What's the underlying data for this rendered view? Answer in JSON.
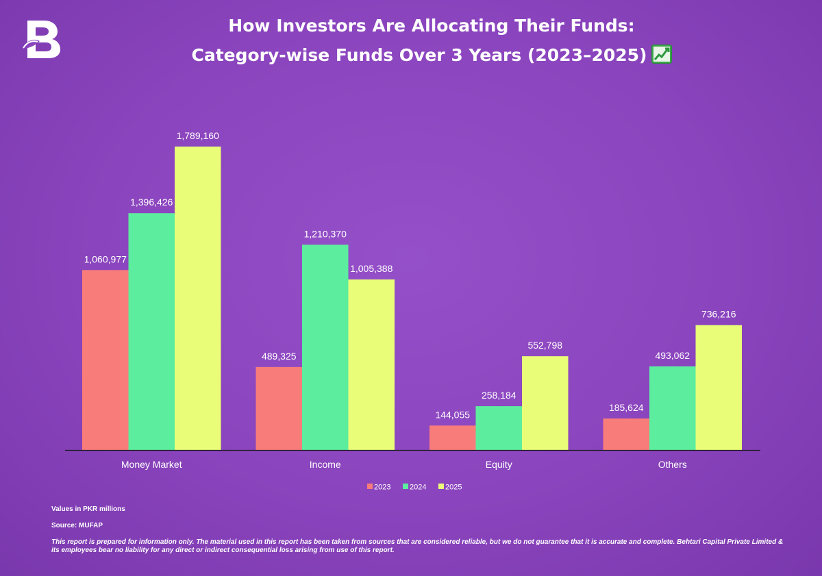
{
  "brand": {
    "logo_letter": "B"
  },
  "title": {
    "line1": "How Investors Are Allocating Their Funds:",
    "line2": "Category-wise Funds Over 3 Years (2023–2025)"
  },
  "chart_data": {
    "type": "bar",
    "categories": [
      "Money Market",
      "Income",
      "Equity",
      "Others"
    ],
    "series": [
      {
        "name": "2023",
        "color": "#f87c7a",
        "values": [
          1060977,
          489325,
          144055,
          185624
        ],
        "labels": [
          "1,060,977",
          "489,325",
          "144,055",
          "185,624"
        ]
      },
      {
        "name": "2024",
        "color": "#5ded9e",
        "values": [
          1396426,
          1210370,
          258184,
          493062
        ],
        "labels": [
          "1,396,426",
          "1,210,370",
          "258,184",
          "493,062"
        ]
      },
      {
        "name": "2025",
        "color": "#e9fd78",
        "values": [
          1789160,
          1005388,
          552798,
          736216
        ],
        "labels": [
          "1,789,160",
          "1,005,388",
          "552,798",
          "736,216"
        ]
      }
    ],
    "ylim": [
      0,
      1789160
    ],
    "legend": "bottom",
    "grid": false,
    "xlabel": "",
    "ylabel": ""
  },
  "footer": {
    "units": "Values in PKR millions",
    "source": "Source: MUFAP",
    "disclaimer": "This report is prepared for information only. The material used in this report has been taken from sources that are considered reliable, but we do not guarantee that it is accurate and complete.  Behtari Capital Private Limited & its employees bear no liability for any direct or indirect  consequential loss arising from use of this report."
  }
}
